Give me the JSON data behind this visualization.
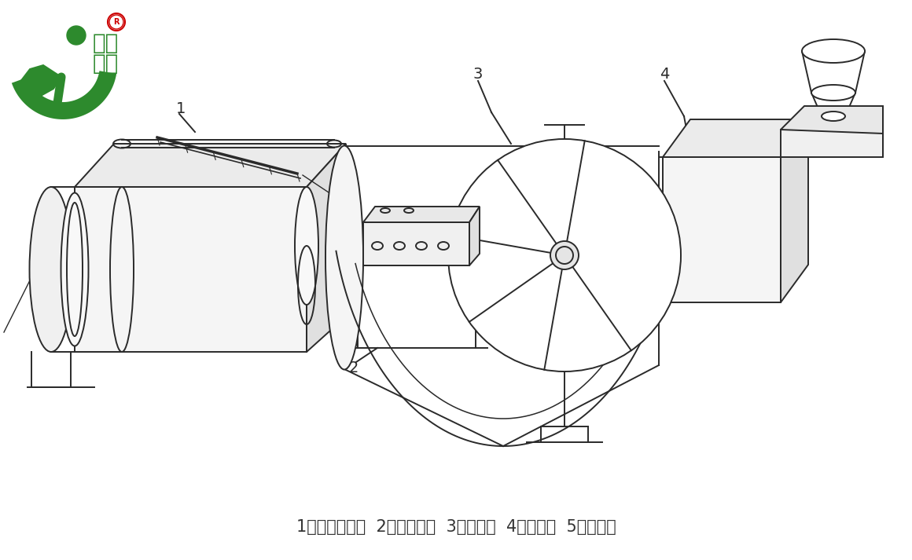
{
  "background_color": "#ffffff",
  "logo_text_line1": "凯迪",
  "logo_text_line2": "正大",
  "logo_green": "#2d8a2d",
  "logo_red": "#cc0000",
  "caption": "1、静电驻极棒  2、高压电源  3、接收辊  4、熔喷头  5、收卷辊",
  "caption_fontsize": 15,
  "line_color": "#2a2a2a",
  "line_width": 1.4,
  "figsize": [
    11.6,
    7.13
  ],
  "dpi": 100
}
